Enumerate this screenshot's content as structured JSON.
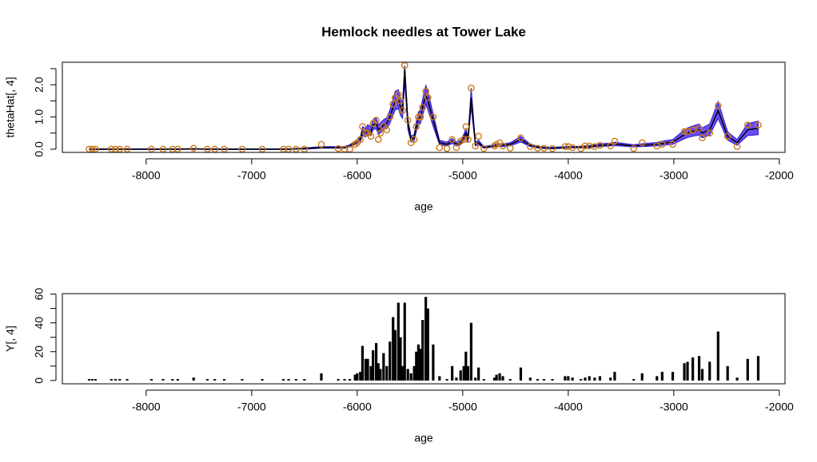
{
  "chart_data": [
    {
      "type": "line",
      "title": "Hemlock needles at Tower Lake",
      "xlabel": "age",
      "ylabel": "thetaHat[, 4]",
      "xlim": [
        -8794,
        -1946
      ],
      "xticks": [
        -8000,
        -7000,
        -6000,
        -5000,
        -4000,
        -3000,
        -2000
      ],
      "ylim": [
        -0.1,
        2.7
      ],
      "yticks": [
        {
          "value": 0,
          "label": "0.0"
        },
        {
          "value": 1,
          "label": "1.0"
        },
        {
          "value": 2,
          "label": "2.0"
        }
      ],
      "yminor_ticks": [
        0.5,
        1.5,
        2.5
      ],
      "x": [
        -8540,
        -8510,
        -8480,
        -8330,
        -8290,
        -8250,
        -8180,
        -7950,
        -7840,
        -7750,
        -7700,
        -7550,
        -7420,
        -7350,
        -7260,
        -7090,
        -6900,
        -6700,
        -6650,
        -6580,
        -6500,
        -6340,
        -6180,
        -6120,
        -6070,
        -6020,
        -6000,
        -5970,
        -5950,
        -5920,
        -5900,
        -5870,
        -5850,
        -5820,
        -5800,
        -5780,
        -5750,
        -5720,
        -5690,
        -5660,
        -5640,
        -5610,
        -5590,
        -5570,
        -5550,
        -5520,
        -5490,
        -5460,
        -5440,
        -5420,
        -5400,
        -5380,
        -5350,
        -5330,
        -5280,
        -5220,
        -5150,
        -5100,
        -5060,
        -5020,
        -4990,
        -4970,
        -4950,
        -4920,
        -4880,
        -4850,
        -4800,
        -4700,
        -4680,
        -4650,
        -4620,
        -4550,
        -4450,
        -4360,
        -4290,
        -4230,
        -4150,
        -4030,
        -4000,
        -3960,
        -3880,
        -3840,
        -3800,
        -3750,
        -3700,
        -3600,
        -3560,
        -3380,
        -3300,
        -3160,
        -3110,
        -3010,
        -2900,
        -2870,
        -2820,
        -2760,
        -2730,
        -2660,
        -2580,
        -2490,
        -2400,
        -2300,
        -2200
      ],
      "series": [
        {
          "style": "band",
          "color": "#6a4cf5",
          "edge_color": "#2a1fd0",
          "lower": [
            -0.01,
            -0.01,
            -0.01,
            -0.01,
            -0.01,
            -0.01,
            -0.01,
            -0.01,
            -0.01,
            -0.01,
            -0.01,
            0,
            -0.01,
            -0.01,
            -0.01,
            -0.01,
            -0.01,
            -0.01,
            -0.01,
            0,
            0,
            0.03,
            0.03,
            0.03,
            0.07,
            0.15,
            0.17,
            0.23,
            0.42,
            0.38,
            0.46,
            0.42,
            0.6,
            0.64,
            0.46,
            0.5,
            0.6,
            0.64,
            0.8,
            1.05,
            1.22,
            1.26,
            1.05,
            0.95,
            2.1,
            0.62,
            0.22,
            0.26,
            0.55,
            0.76,
            0.8,
            1.05,
            1.4,
            1.22,
            0.7,
            0.14,
            0.1,
            0.18,
            0.1,
            0.14,
            0.26,
            0.38,
            0.22,
            1.3,
            0.1,
            0.14,
            0.03,
            0.07,
            0.08,
            0.09,
            0.08,
            0.1,
            0.22,
            0.08,
            0.04,
            0.02,
            0.01,
            0.03,
            0.04,
            0.04,
            0.04,
            0.05,
            0.05,
            0.07,
            0.08,
            0.1,
            0.11,
            0.07,
            0.08,
            0.1,
            0.12,
            0.15,
            0.32,
            0.36,
            0.4,
            0.44,
            0.35,
            0.44,
            0.95,
            0.28,
            0.12,
            0.42,
            0.45
          ],
          "upper": [
            0.01,
            0.01,
            0.01,
            0.01,
            0.01,
            0.01,
            0.01,
            0.01,
            0.01,
            0.01,
            0.01,
            0.02,
            0.01,
            0.01,
            0.01,
            0.01,
            0.01,
            0.01,
            0.01,
            0.02,
            0.04,
            0.08,
            0.08,
            0.08,
            0.14,
            0.26,
            0.28,
            0.38,
            0.7,
            0.64,
            0.76,
            0.7,
            0.92,
            0.98,
            0.76,
            0.82,
            0.92,
            0.98,
            1.22,
            1.56,
            1.8,
            1.85,
            1.56,
            1.45,
            2.6,
            0.98,
            0.4,
            0.46,
            0.86,
            1.15,
            1.22,
            1.56,
            1.98,
            1.8,
            1.1,
            0.28,
            0.22,
            0.34,
            0.22,
            0.28,
            0.46,
            0.64,
            0.4,
            1.9,
            0.22,
            0.28,
            0.08,
            0.14,
            0.16,
            0.17,
            0.16,
            0.2,
            0.4,
            0.16,
            0.09,
            0.07,
            0.06,
            0.08,
            0.09,
            0.09,
            0.09,
            0.1,
            0.12,
            0.14,
            0.17,
            0.19,
            0.22,
            0.14,
            0.17,
            0.21,
            0.25,
            0.3,
            0.6,
            0.66,
            0.72,
            0.78,
            0.66,
            0.78,
            1.48,
            0.54,
            0.3,
            0.8,
            0.87
          ]
        },
        {
          "style": "line",
          "color": "#000000",
          "values": [
            0,
            0,
            0,
            0,
            0,
            0,
            0,
            0,
            0,
            0,
            0,
            0.01,
            0,
            0,
            0,
            0,
            0,
            0,
            0,
            0.01,
            0.02,
            0.05,
            0.05,
            0.05,
            0.1,
            0.2,
            0.22,
            0.3,
            0.55,
            0.5,
            0.6,
            0.55,
            0.75,
            0.8,
            0.6,
            0.65,
            0.75,
            0.8,
            1.0,
            1.3,
            1.5,
            1.55,
            1.3,
            1.2,
            2.5,
            0.8,
            0.3,
            0.35,
            0.7,
            0.95,
            1.0,
            1.3,
            1.7,
            1.5,
            0.9,
            0.2,
            0.15,
            0.25,
            0.15,
            0.2,
            0.35,
            0.5,
            0.3,
            1.6,
            0.15,
            0.2,
            0.05,
            0.1,
            0.12,
            0.13,
            0.12,
            0.15,
            0.3,
            0.12,
            0.06,
            0.04,
            0.03,
            0.05,
            0.06,
            0.06,
            0.06,
            0.07,
            0.08,
            0.1,
            0.12,
            0.14,
            0.16,
            0.1,
            0.12,
            0.15,
            0.18,
            0.22,
            0.45,
            0.5,
            0.55,
            0.6,
            0.5,
            0.6,
            1.2,
            0.4,
            0.2,
            0.6,
            0.65
          ]
        },
        {
          "style": "points",
          "color": "#cc7a1a",
          "values": [
            0,
            0,
            0,
            0,
            0,
            0,
            0,
            0,
            0,
            0,
            0,
            0.03,
            0,
            0,
            0,
            0,
            0,
            0,
            0,
            0,
            0,
            0.15,
            0.02,
            0,
            0,
            0.15,
            0.2,
            0.3,
            0.7,
            0.5,
            0.5,
            0.4,
            0.8,
            0.9,
            0.3,
            0.5,
            0.7,
            0.6,
            1.0,
            1.4,
            1.6,
            1.7,
            1.5,
            1.2,
            2.6,
            0.9,
            0.2,
            0.3,
            0.7,
            1.0,
            1.0,
            1.3,
            1.8,
            1.6,
            1.0,
            0.05,
            0.02,
            0.3,
            0.05,
            0.25,
            0.3,
            0.7,
            0.3,
            1.9,
            0.1,
            0.4,
            0.02,
            0.1,
            0.15,
            0.2,
            0.1,
            0.03,
            0.35,
            0.08,
            0.03,
            0.03,
            0.02,
            0.08,
            0.08,
            0.05,
            0.02,
            0.1,
            0.1,
            0.08,
            0.12,
            0.1,
            0.25,
            0.02,
            0.2,
            0.1,
            0.15,
            0.15,
            0.55,
            0.55,
            0.6,
            0.65,
            0.35,
            0.5,
            1.35,
            0.4,
            0.08,
            0.75,
            0.75
          ]
        }
      ]
    },
    {
      "type": "needle",
      "xlabel": "age",
      "ylabel": "Y[, 4]",
      "color": "#000000",
      "xlim": [
        -8794,
        -1946
      ],
      "xticks": [
        -8000,
        -7000,
        -6000,
        -5000,
        -4000,
        -3000,
        -2000
      ],
      "ylim": [
        -2.3,
        60.3
      ],
      "yticks": [
        0,
        20,
        40,
        60
      ],
      "yminor_ticks": [
        10,
        30,
        50
      ],
      "x": [
        -8540,
        -8510,
        -8480,
        -8330,
        -8290,
        -8250,
        -8180,
        -7950,
        -7840,
        -7750,
        -7700,
        -7550,
        -7420,
        -7350,
        -7260,
        -7090,
        -6900,
        -6700,
        -6650,
        -6580,
        -6500,
        -6340,
        -6180,
        -6120,
        -6070,
        -6020,
        -6000,
        -5970,
        -5950,
        -5920,
        -5900,
        -5870,
        -5850,
        -5820,
        -5800,
        -5780,
        -5750,
        -5720,
        -5690,
        -5660,
        -5640,
        -5610,
        -5590,
        -5570,
        -5550,
        -5520,
        -5490,
        -5460,
        -5440,
        -5420,
        -5400,
        -5380,
        -5350,
        -5330,
        -5280,
        -5220,
        -5150,
        -5100,
        -5060,
        -5020,
        -4990,
        -4970,
        -4950,
        -4920,
        -4880,
        -4850,
        -4800,
        -4700,
        -4680,
        -4650,
        -4620,
        -4550,
        -4450,
        -4360,
        -4290,
        -4230,
        -4150,
        -4030,
        -4000,
        -3960,
        -3880,
        -3840,
        -3800,
        -3750,
        -3700,
        -3600,
        -3560,
        -3380,
        -3300,
        -3160,
        -3110,
        -3010,
        -2900,
        -2870,
        -2820,
        -2760,
        -2730,
        -2660,
        -2580,
        -2490,
        -2400,
        -2300,
        -2200
      ],
      "values": [
        1,
        1,
        1,
        1,
        1,
        1,
        1,
        1,
        1,
        1,
        1,
        2,
        1,
        1,
        1,
        1,
        1,
        1,
        1,
        1,
        1,
        5,
        1,
        1,
        1,
        4,
        5,
        6,
        24,
        15,
        15,
        10,
        21,
        26,
        12,
        8,
        19,
        10,
        27,
        44,
        35,
        54,
        30,
        10,
        54,
        8,
        5,
        10,
        20,
        25,
        22,
        42,
        58,
        50,
        25,
        3,
        1,
        10,
        2,
        7,
        10,
        20,
        10,
        40,
        2,
        9,
        1,
        2,
        4,
        5,
        3,
        1,
        9,
        2,
        1,
        1,
        1,
        3,
        3,
        2,
        1,
        2,
        3,
        2,
        3,
        2,
        6,
        1,
        5,
        3,
        6,
        6,
        12,
        13,
        16,
        17,
        8,
        13,
        34,
        10,
        2,
        15,
        17
      ]
    }
  ]
}
